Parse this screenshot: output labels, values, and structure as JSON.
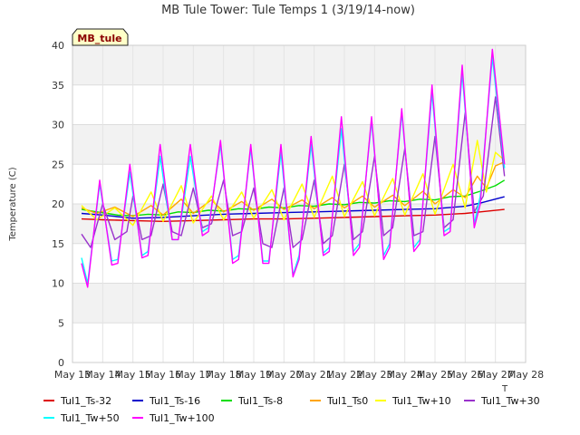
{
  "chart_data": {
    "type": "line",
    "title": "MB Tule Tower: Tule Temps 1 (3/19/14-now)",
    "site_label": "MB_tule",
    "ylabel": "Temperature (C)",
    "xlabel": "",
    "xlabel_fragment": "T",
    "ylim": [
      0,
      40
    ],
    "y_ticks": [
      0,
      5,
      10,
      15,
      20,
      25,
      30,
      35,
      40
    ],
    "xlim": [
      13,
      28
    ],
    "x_ticks": [
      {
        "v": 13,
        "label": "May 13"
      },
      {
        "v": 14,
        "label": "May 14"
      },
      {
        "v": 15,
        "label": "May 15"
      },
      {
        "v": 16,
        "label": "May 16"
      },
      {
        "v": 17,
        "label": "May 17"
      },
      {
        "v": 18,
        "label": "May 18"
      },
      {
        "v": 19,
        "label": "May 19"
      },
      {
        "v": 20,
        "label": "May 20"
      },
      {
        "v": 21,
        "label": "May 21"
      },
      {
        "v": 22,
        "label": "May 22"
      },
      {
        "v": 23,
        "label": "May 23"
      },
      {
        "v": 24,
        "label": "May 24"
      },
      {
        "v": 25,
        "label": "May 25"
      },
      {
        "v": 26,
        "label": "May 26"
      },
      {
        "v": 27,
        "label": "May 27"
      },
      {
        "v": 28,
        "label": "May 28"
      }
    ],
    "grid": true,
    "legend_position": "bottom",
    "series": [
      {
        "name": "Tul1_Ts-32",
        "color": "#dd0000",
        "x": [
          13.3,
          14,
          15,
          16,
          17,
          18,
          19,
          20,
          21,
          22,
          23,
          24,
          25,
          26,
          26.5,
          27.3
        ],
        "y": [
          18.1,
          18.0,
          17.9,
          17.8,
          17.9,
          18.0,
          18.1,
          18.1,
          18.2,
          18.3,
          18.4,
          18.5,
          18.6,
          18.8,
          19.0,
          19.3
        ]
      },
      {
        "name": "Tul1_Ts-16",
        "color": "#0000cc",
        "x": [
          13.3,
          14,
          15,
          16,
          17,
          18,
          19,
          20,
          21,
          22,
          23,
          24,
          25,
          26,
          26.5,
          27.3
        ],
        "y": [
          18.8,
          18.6,
          18.2,
          18.3,
          18.5,
          18.7,
          18.8,
          18.9,
          19.0,
          19.1,
          19.2,
          19.3,
          19.4,
          19.7,
          20.1,
          20.9
        ]
      },
      {
        "name": "Tul1_Ts-8",
        "color": "#00dd00",
        "x": [
          13.3,
          13.8,
          14.5,
          15,
          15.5,
          16,
          16.5,
          17,
          17.5,
          18,
          18.5,
          19,
          19.5,
          20,
          20.5,
          21,
          21.5,
          22,
          22.5,
          23,
          23.5,
          24,
          24.5,
          25,
          25.5,
          26,
          26.5,
          27,
          27.3
        ],
        "y": [
          19.3,
          19.0,
          18.6,
          18.5,
          18.7,
          18.6,
          19.0,
          18.9,
          19.2,
          19.1,
          19.4,
          19.3,
          19.6,
          19.5,
          19.8,
          19.7,
          20.0,
          19.9,
          20.2,
          20.1,
          20.4,
          20.3,
          20.6,
          20.5,
          20.9,
          21.0,
          21.6,
          22.3,
          23.0
        ]
      },
      {
        "name": "Tul1_Ts0",
        "color": "#ffa500",
        "x": [
          13.3,
          13.8,
          14.4,
          15,
          15.6,
          16,
          16.6,
          17,
          17.6,
          18,
          18.6,
          19,
          19.6,
          20,
          20.6,
          21,
          21.6,
          22,
          22.6,
          23,
          23.6,
          24,
          24.6,
          25,
          25.6,
          26,
          26.4,
          26.7,
          27,
          27.3
        ],
        "y": [
          19.5,
          18.8,
          19.6,
          18.4,
          19.8,
          18.6,
          20.6,
          18.8,
          20.5,
          19.0,
          20.3,
          19.2,
          20.6,
          19.3,
          20.5,
          19.4,
          20.8,
          19.5,
          21.0,
          19.6,
          21.1,
          19.8,
          21.6,
          20.0,
          21.8,
          20.8,
          23.5,
          22.0,
          24.8,
          25.3
        ]
      },
      {
        "name": "Tul1_Tw+10",
        "color": "#ffff00",
        "x": [
          13.3,
          13.8,
          14.4,
          15,
          15.6,
          16,
          16.6,
          17,
          17.6,
          18,
          18.6,
          19,
          19.6,
          20,
          20.6,
          21,
          21.6,
          22,
          22.6,
          23,
          23.6,
          24,
          24.6,
          25,
          25.6,
          26,
          26.4,
          26.7,
          27,
          27.3
        ],
        "y": [
          19.8,
          18.0,
          19.5,
          17.3,
          21.5,
          17.8,
          22.3,
          17.6,
          21.0,
          18.0,
          21.5,
          18.2,
          21.8,
          18.0,
          22.5,
          18.3,
          23.5,
          18.4,
          22.8,
          18.5,
          23.2,
          18.6,
          23.8,
          18.7,
          25.0,
          19.5,
          28.0,
          21.5,
          26.5,
          25.5
        ]
      },
      {
        "name": "Tul1_Tw+30",
        "color": "#9932cc",
        "x": [
          13.3,
          13.6,
          14.0,
          14.4,
          14.8,
          15.0,
          15.3,
          15.6,
          16.0,
          16.3,
          16.6,
          17.0,
          17.3,
          17.6,
          18.0,
          18.3,
          18.6,
          19.0,
          19.3,
          19.6,
          20.0,
          20.3,
          20.6,
          21.0,
          21.3,
          21.6,
          22.0,
          22.3,
          22.6,
          23.0,
          23.3,
          23.6,
          24.0,
          24.3,
          24.6,
          25.0,
          25.3,
          25.6,
          26.0,
          26.3,
          26.6,
          27.0,
          27.3
        ],
        "y": [
          16.2,
          14.5,
          20.0,
          15.5,
          16.5,
          21.0,
          15.5,
          16.0,
          22.5,
          16.5,
          16.0,
          22.0,
          17.0,
          17.5,
          23.0,
          16.0,
          16.5,
          22.0,
          15.0,
          14.5,
          22.0,
          14.5,
          15.5,
          23.0,
          15.0,
          16.0,
          25.0,
          15.5,
          16.5,
          26.0,
          16.0,
          17.0,
          27.0,
          16.0,
          16.5,
          28.5,
          17.0,
          18.0,
          31.5,
          19.0,
          21.0,
          33.5,
          23.5
        ]
      },
      {
        "name": "Tul1_Tw+50",
        "color": "#00ffff",
        "x": [
          13.3,
          13.5,
          13.9,
          14.3,
          14.5,
          14.9,
          15.3,
          15.5,
          15.9,
          16.3,
          16.5,
          16.9,
          17.3,
          17.5,
          17.9,
          18.3,
          18.5,
          18.9,
          19.3,
          19.5,
          19.9,
          20.3,
          20.5,
          20.9,
          21.3,
          21.5,
          21.9,
          22.3,
          22.5,
          22.9,
          23.3,
          23.5,
          23.9,
          24.3,
          24.5,
          24.9,
          25.3,
          25.5,
          25.9,
          26.3,
          26.5,
          26.9,
          27.3
        ],
        "y": [
          13.2,
          10.0,
          22.5,
          12.8,
          13.0,
          24.0,
          13.5,
          14.0,
          26.0,
          15.5,
          15.5,
          26.0,
          16.5,
          17.0,
          27.5,
          13.0,
          13.5,
          27.0,
          12.8,
          12.8,
          26.5,
          11.0,
          13.5,
          27.5,
          13.8,
          14.5,
          29.5,
          14.0,
          15.0,
          30.5,
          13.5,
          15.0,
          31.5,
          14.5,
          15.5,
          34.0,
          16.5,
          17.0,
          36.5,
          17.5,
          21.0,
          38.5,
          24.5
        ]
      },
      {
        "name": "Tul1_Tw+100",
        "color": "#ff00ff",
        "x": [
          13.3,
          13.5,
          13.9,
          14.3,
          14.5,
          14.9,
          15.3,
          15.5,
          15.9,
          16.3,
          16.5,
          16.9,
          17.3,
          17.5,
          17.9,
          18.3,
          18.5,
          18.9,
          19.3,
          19.5,
          19.9,
          20.3,
          20.5,
          20.9,
          21.3,
          21.5,
          21.9,
          22.3,
          22.5,
          22.9,
          23.3,
          23.5,
          23.9,
          24.3,
          24.5,
          24.9,
          25.3,
          25.5,
          25.9,
          26.3,
          26.5,
          26.9,
          27.3
        ],
        "y": [
          12.5,
          9.5,
          23.0,
          12.3,
          12.5,
          25.0,
          13.2,
          13.5,
          27.5,
          15.5,
          15.5,
          27.5,
          16.0,
          16.5,
          28.0,
          12.5,
          13.0,
          27.5,
          12.5,
          12.5,
          27.5,
          10.8,
          13.0,
          28.5,
          13.5,
          14.0,
          31.0,
          13.5,
          14.5,
          31.0,
          13.0,
          14.5,
          32.0,
          14.0,
          15.0,
          35.0,
          16.0,
          16.5,
          37.5,
          17.0,
          20.0,
          39.5,
          25.0
        ]
      }
    ]
  }
}
